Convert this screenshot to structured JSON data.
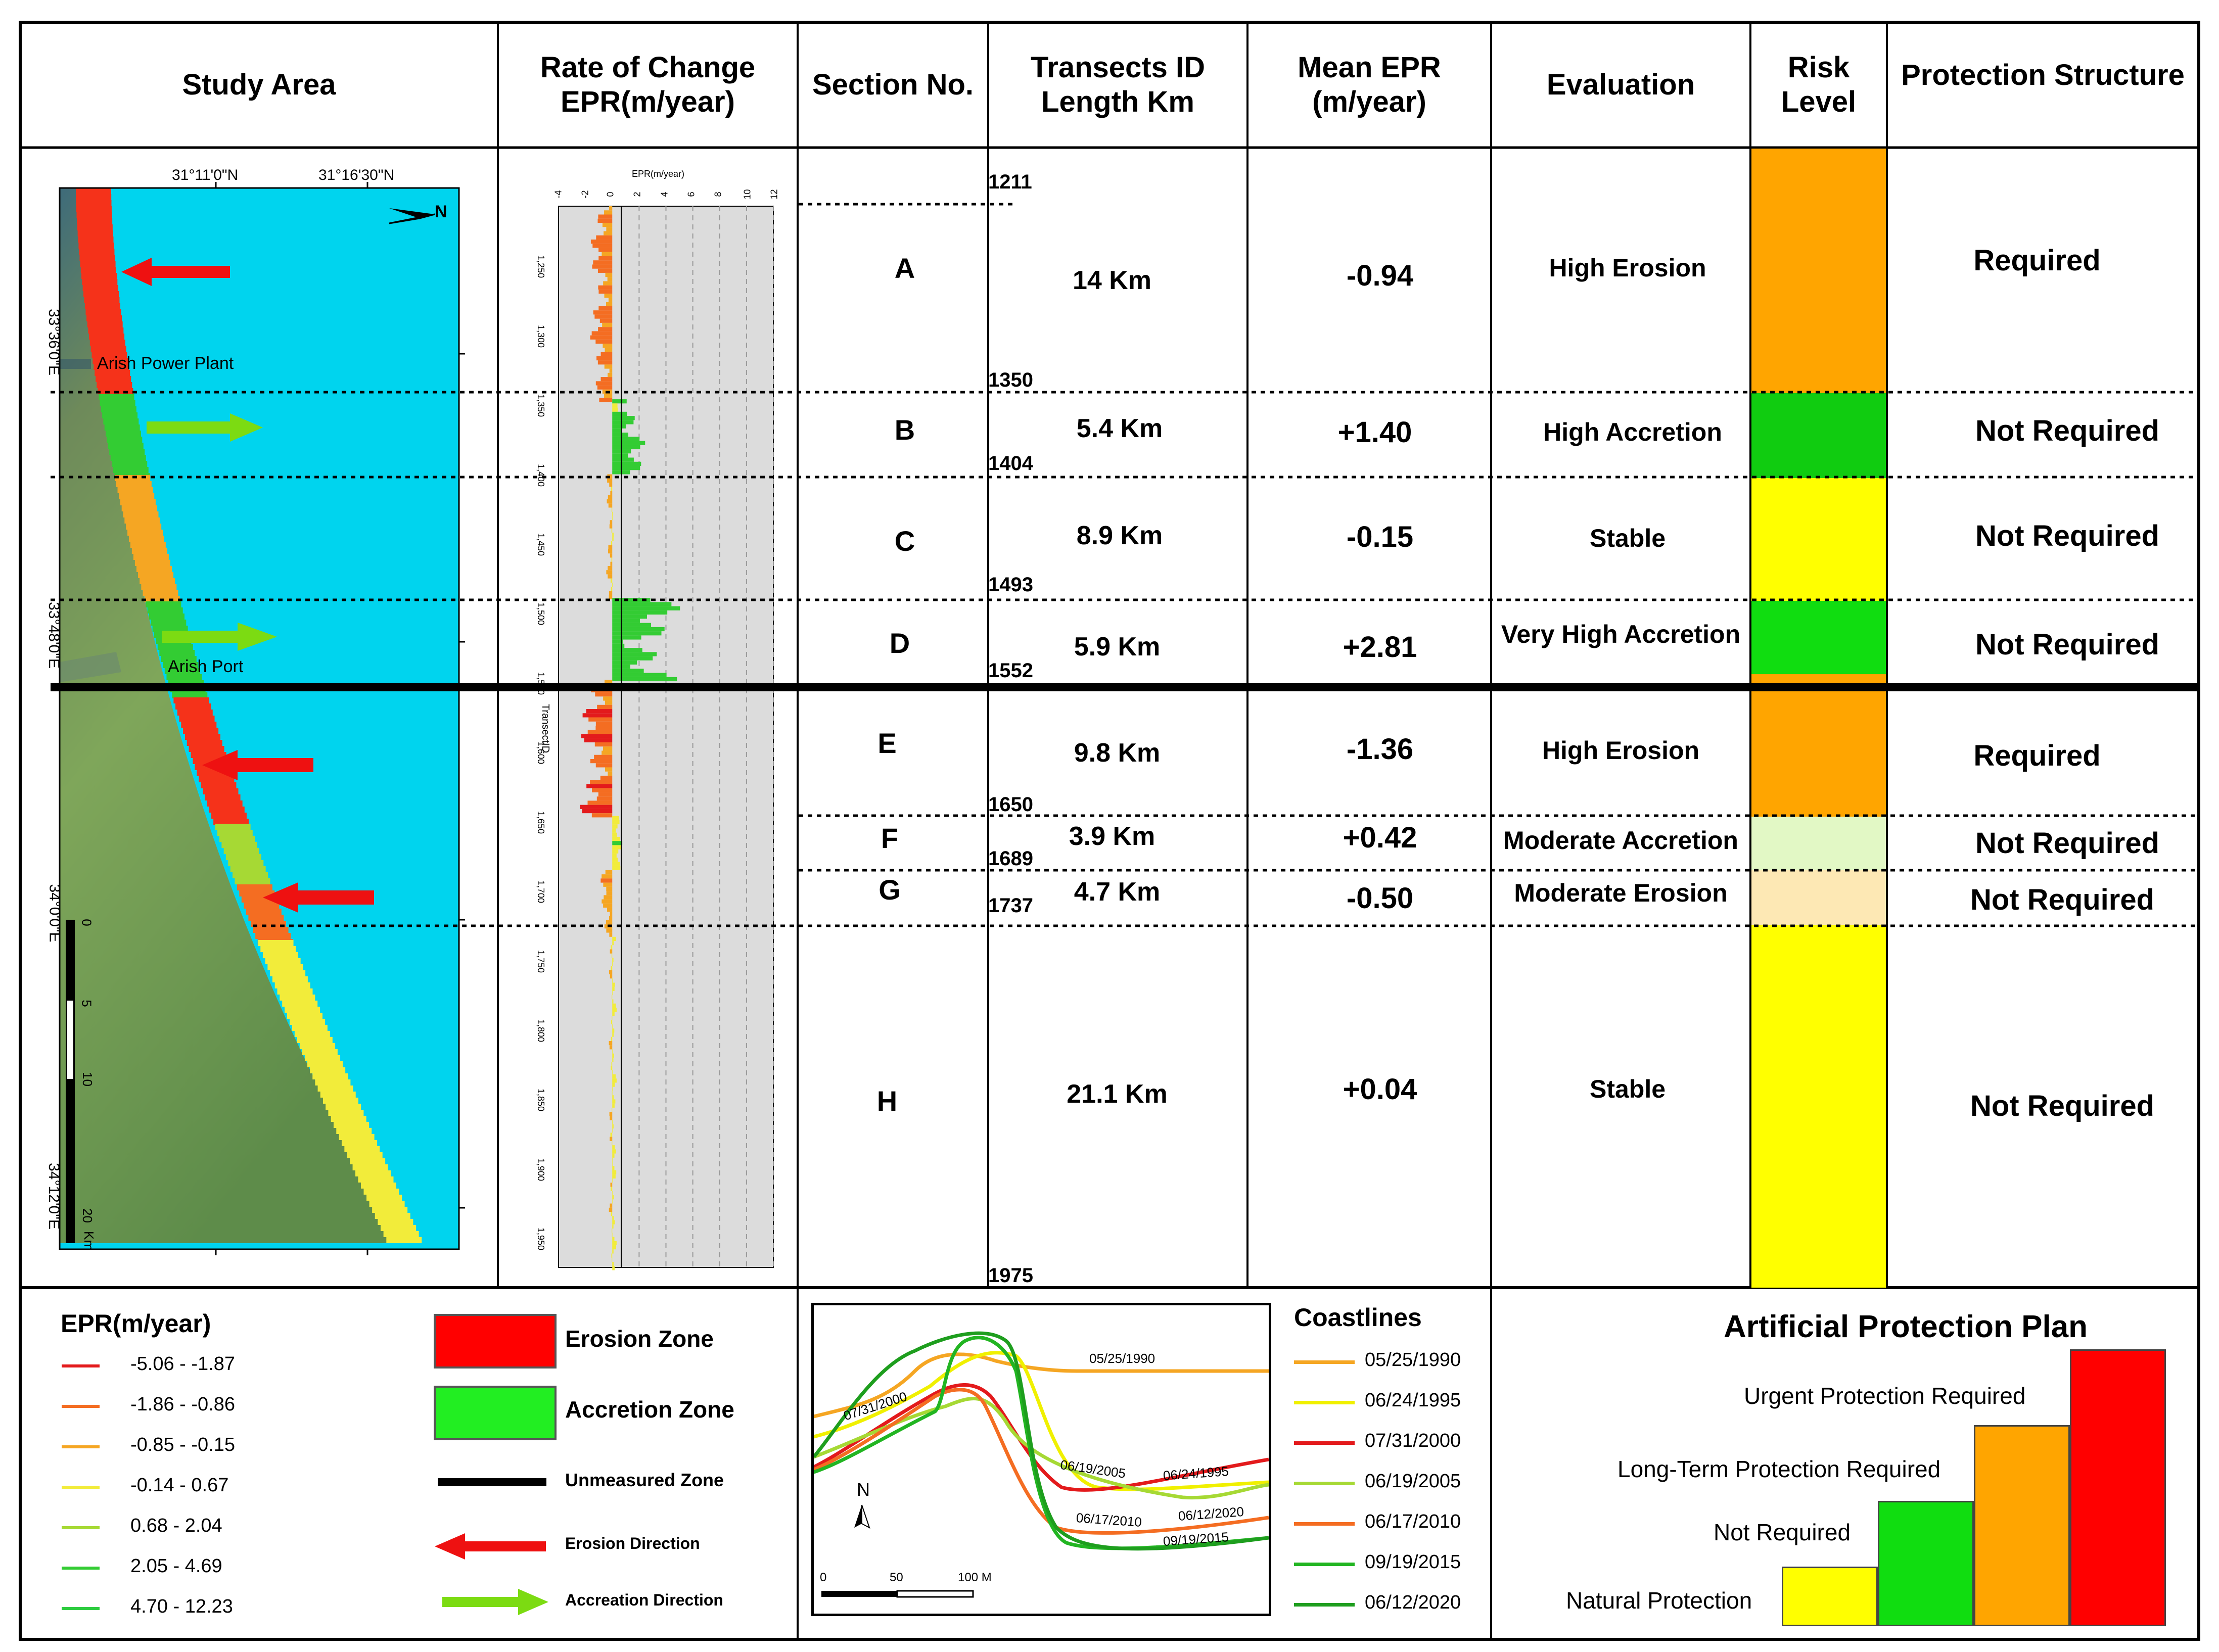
{
  "headers": {
    "study_area": "Study Area",
    "rate_l1": "Rate of Change",
    "rate_l2": "EPR(m/year)",
    "section": "Section No.",
    "transect_l1": "Transects ID",
    "transect_l2": "Length Km",
    "mean_l1": "Mean EPR",
    "mean_l2": "(m/year)",
    "evaluation": "Evaluation",
    "risk_l1": "Risk",
    "risk_l2": "Level",
    "protection": "Protection Structure"
  },
  "transect_ids": [
    "1211",
    "1350",
    "1404",
    "1493",
    "1552",
    "1650",
    "1689",
    "1737",
    "1975"
  ],
  "sections": [
    {
      "id": "A",
      "length": "14 Km",
      "mean_epr": "-0.94",
      "evaluation": "High Erosion",
      "risk_color": "#FFA500",
      "protection": "Required"
    },
    {
      "id": "B",
      "length": "5.4 Km",
      "mean_epr": "+1.40",
      "evaluation": "High Accretion",
      "risk_color": "#10CC10",
      "protection": "Not Required"
    },
    {
      "id": "C",
      "length": "8.9 Km",
      "mean_epr": "-0.15",
      "evaluation": "Stable",
      "risk_color": "#FFFF00",
      "protection": "Not Required"
    },
    {
      "id": "D",
      "length": "5.9 Km",
      "mean_epr": "+2.81",
      "evaluation": "Very High Accretion",
      "risk_color": "#10DD10",
      "protection": "Not Required"
    },
    {
      "id": "E",
      "length": "9.8 Km",
      "mean_epr": "-1.36",
      "evaluation": "High Erosion",
      "risk_color": "#FFA500",
      "protection": "Required"
    },
    {
      "id": "F",
      "length": "3.9 Km",
      "mean_epr": "+0.42",
      "evaluation": "Moderate Accretion",
      "risk_color": "#E2F8C5",
      "protection": "Not Required"
    },
    {
      "id": "G",
      "length": "4.7 Km",
      "mean_epr": "-0.50",
      "evaluation": "Moderate Erosion",
      "risk_color": "#FDE8B4",
      "protection": "Not Required"
    },
    {
      "id": "H",
      "length": "21.1 Km",
      "mean_epr": "+0.04",
      "evaluation": "Stable",
      "risk_color": "#FFFF00",
      "protection": "Not Required"
    }
  ],
  "map": {
    "lat1": "31°11'0\"N",
    "lat2": "31°16'30\"N",
    "lon1": "33°36'0\"E",
    "lon2": "33°48'0\"E",
    "lon3": "34°0'0\"E",
    "lon4": "34°12'0\"E",
    "north": "N",
    "power_plant": "Arish Power Plant",
    "port": "Arish Port",
    "scale_labels": [
      "0",
      "5",
      "10",
      "20"
    ],
    "scale_unit": "Km"
  },
  "epr_chart": {
    "axis_title": "EPR(m/year)",
    "x_ticks": [
      "-4",
      "-2",
      "0",
      "2",
      "4",
      "6",
      "8",
      "10",
      "12"
    ],
    "y_label": "TransectID",
    "y_ticks": [
      "1,250",
      "1,300",
      "1,350",
      "1,400",
      "1,450",
      "1,500",
      "1,550",
      "1,600",
      "1,650",
      "1,700",
      "1,750",
      "1,800",
      "1,850",
      "1,900",
      "1,950"
    ]
  },
  "legend": {
    "title": "EPR(m/year)",
    "items": [
      {
        "label": "-5.06 - -1.87",
        "color": "#E31A1C"
      },
      {
        "label": "-1.86 - -0.86",
        "color": "#F46D22"
      },
      {
        "label": "-0.85 - -0.15",
        "color": "#F5A623"
      },
      {
        "label": "-0.14 - 0.67",
        "color": "#F2EC3A"
      },
      {
        "label": "0.68 - 2.04",
        "color": "#A6D934"
      },
      {
        "label": "2.05 - 4.69",
        "color": "#33CC33"
      },
      {
        "label": "4.70 - 12.23",
        "color": "#2ECC40"
      }
    ],
    "erosion_zone": "Erosion Zone",
    "accretion_zone": "Accretion Zone",
    "unmeasured_zone": "Unmeasured Zone",
    "erosion_direction": "Erosion Direction",
    "accretion_direction": "Accreation Direction"
  },
  "coastlines": {
    "title": "Coastlines",
    "items": [
      {
        "label": "05/25/1990",
        "color": "#F5A623"
      },
      {
        "label": "06/24/1995",
        "color": "#F0F000"
      },
      {
        "label": "07/31/2000",
        "color": "#E31A1C"
      },
      {
        "label": "06/19/2005",
        "color": "#A6D934"
      },
      {
        "label": "06/17/2010",
        "color": "#F46D22"
      },
      {
        "label": "09/19/2015",
        "color": "#22B522"
      },
      {
        "label": "06/12/2020",
        "color": "#1E9E1E"
      }
    ],
    "inset_labels": [
      "05/25/1990",
      "07/31/2000",
      "06/19/2005",
      "06/24/1995",
      "06/17/2010",
      "06/12/2020",
      "09/19/2015"
    ],
    "north": "N",
    "scale": [
      "0",
      "50",
      "100 M"
    ]
  },
  "plan": {
    "title": "Artificial Protection Plan",
    "levels": [
      {
        "label": "Natural Protection",
        "color": "#FFFF00"
      },
      {
        "label": "Not Required",
        "color": "#10DD10"
      },
      {
        "label": "Long-Term Protection Required",
        "color": "#FFA500"
      },
      {
        "label": "Urgent Protection Required",
        "color": "#FF0000"
      }
    ]
  }
}
